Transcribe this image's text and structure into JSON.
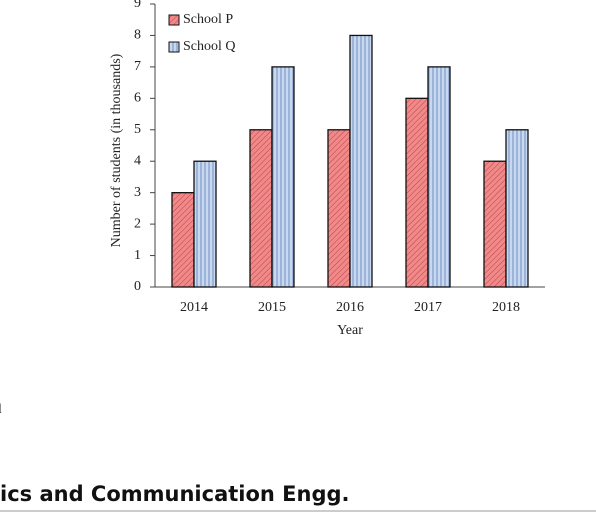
{
  "chart_data": {
    "type": "bar",
    "y_label": "Number of students (in thousands)",
    "x_label": "Year",
    "categories": [
      "2014",
      "2015",
      "2016",
      "2017",
      "2018"
    ],
    "series": [
      {
        "name": "School P",
        "color": "#f08a8a",
        "values": [
          3,
          5,
          5,
          6,
          4
        ]
      },
      {
        "name": "School Q",
        "color": "#b4c8e6",
        "values": [
          4,
          7,
          8,
          7,
          5
        ]
      }
    ],
    "ylim": [
      0,
      9
    ],
    "yticks": [
      0,
      1,
      2,
      3,
      4,
      5,
      6,
      7,
      8,
      9
    ],
    "grid": false,
    "legend": "upper-left"
  },
  "page": {
    "fragment": "l",
    "heading": "ics and Communication Engg."
  }
}
